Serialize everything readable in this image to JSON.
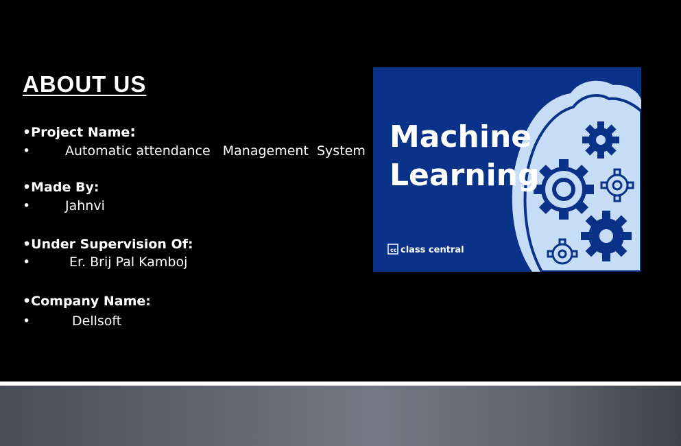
{
  "slide": {
    "title": "ABOUT US",
    "items": [
      {
        "label": "•Project Name",
        "colon": ":",
        "bullet": "•",
        "value": "Automatic attendance   Management  System"
      },
      {
        "label": "•Made By:",
        "colon": "",
        "bullet": "•",
        "value": "Jahnvi"
      },
      {
        "label": "•Under Supervision Of:",
        "colon": "",
        "bullet": "•",
        "value": "Er. Brij Pal Kamboj"
      },
      {
        "label": "•Company Name:",
        "colon": "",
        "bullet": "•",
        "value": "Dellsoft"
      }
    ]
  },
  "image": {
    "line1": "Machine",
    "line2": "Learning",
    "brand": "class central",
    "brand_badge": "cc",
    "colors": {
      "background": "#0b3289",
      "gear": "#0b3289",
      "brain": "#c6ddf5",
      "text": "#ffffff"
    }
  }
}
